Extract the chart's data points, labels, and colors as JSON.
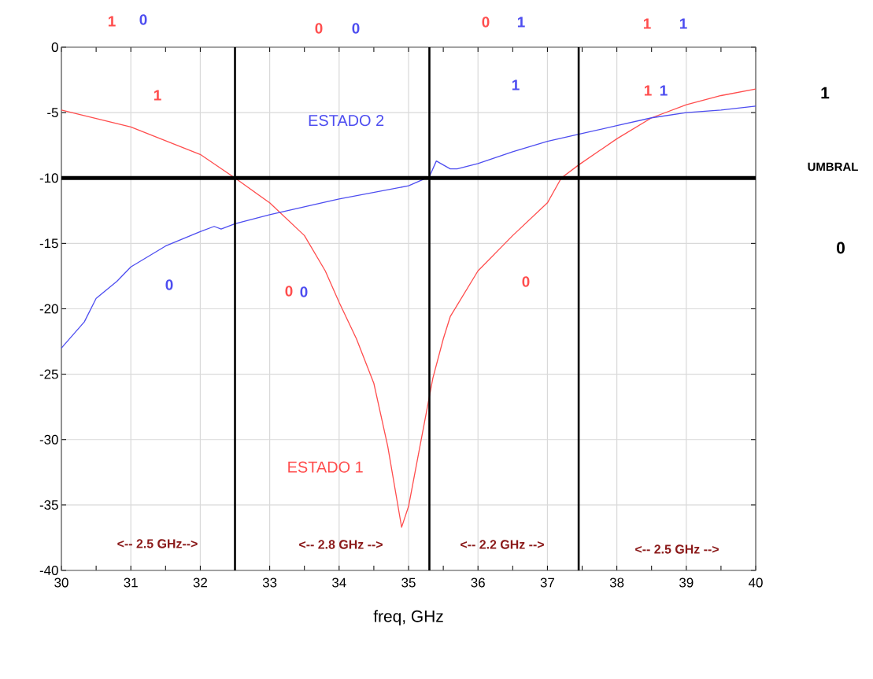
{
  "chart_data": {
    "type": "line",
    "xlabel": "freq, GHz",
    "xlim": [
      30,
      40
    ],
    "ylim": [
      -40,
      0
    ],
    "xticks": [
      30,
      31,
      32,
      33,
      34,
      35,
      36,
      37,
      38,
      39,
      40
    ],
    "yticks": [
      0,
      -5,
      -10,
      -15,
      -20,
      -25,
      -30,
      -35,
      -40
    ],
    "grid": true,
    "line_style": "solid",
    "marker": "none",
    "series": [
      {
        "name": "ESTADO 1",
        "color": "#ff4d4d",
        "x": [
          30,
          31,
          32,
          32.5,
          33,
          33.5,
          33.8,
          34,
          34.25,
          34.5,
          34.7,
          34.9,
          35,
          35.35,
          35.5,
          35.6,
          36,
          36.5,
          37,
          37.2,
          37.45,
          38,
          38.5,
          39,
          39.5,
          40
        ],
        "values": [
          -4.8,
          -6.1,
          -8.2,
          -10,
          -11.9,
          -14.4,
          -17.1,
          -19.5,
          -22.3,
          -25.7,
          -30.5,
          -36.7,
          -35.1,
          -25.3,
          -22.3,
          -20.6,
          -17.1,
          -14.4,
          -11.9,
          -10,
          -9.0,
          -7.0,
          -5.4,
          -4.4,
          -3.7,
          -3.2
        ]
      },
      {
        "name": "ESTADO 2",
        "color": "#4d4df0",
        "x": [
          30,
          30.33,
          30.5,
          30.8,
          31,
          31.5,
          32,
          32.2,
          32.3,
          32.5,
          33,
          34,
          35,
          35.3,
          35.4,
          35.6,
          35.7,
          36,
          36.5,
          37,
          37.5,
          38,
          38.5,
          39,
          39.5,
          40
        ],
        "values": [
          -23,
          -21,
          -19.2,
          -17.9,
          -16.8,
          -15.2,
          -14.1,
          -13.7,
          -13.9,
          -13.5,
          -12.8,
          -11.6,
          -10.6,
          -9.9,
          -8.7,
          -9.3,
          -9.3,
          -8.9,
          -8.0,
          -7.2,
          -6.6,
          -6.0,
          -5.4,
          -5.0,
          -4.8,
          -4.5
        ]
      }
    ],
    "ref_lines": [
      {
        "axis": "y",
        "value": -10,
        "color": "#000000"
      },
      {
        "axis": "x",
        "value": 32.5,
        "color": "#000000"
      },
      {
        "axis": "x",
        "value": 35.3,
        "color": "#000000"
      },
      {
        "axis": "x",
        "value": 37.45,
        "color": "#000000"
      }
    ],
    "annotations": [
      "1",
      "0",
      "0",
      "0",
      "0",
      "1",
      "1",
      "1",
      "1",
      "UMBRAL",
      "0",
      "1",
      "1",
      "1",
      "1",
      "0",
      "0",
      "0",
      "0",
      "<-- 2.5 GHz-->",
      "<-- 2.8 GHz -->",
      "<-- 2.2 GHz -->",
      "<-- 2.5 GHz -->"
    ]
  }
}
